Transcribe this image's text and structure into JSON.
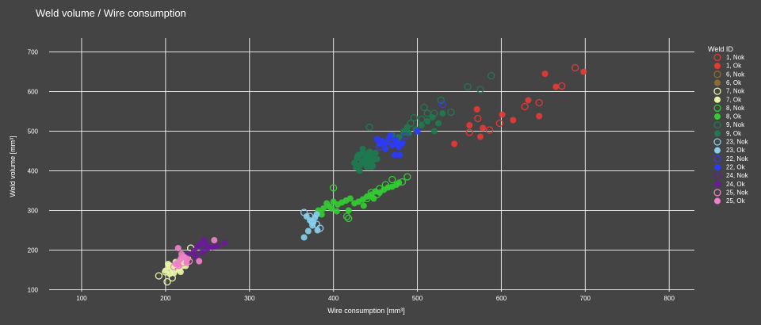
{
  "chart_data": {
    "type": "scatter",
    "title": "Weld volume / Wire consumption",
    "xlabel": "Wire consumption [mm³]",
    "ylabel": "Weld volume [mm³]",
    "xlim": [
      50,
      830
    ],
    "ylim": [
      95,
      735
    ],
    "xticks": [
      100,
      200,
      300,
      400,
      500,
      600,
      700,
      800
    ],
    "yticks": [
      100,
      200,
      300,
      400,
      500,
      600,
      700
    ],
    "grid": true,
    "legend_title": "Weld ID",
    "legend_position": "right",
    "series": [
      {
        "name": "1, Nok",
        "color": "#e53935",
        "marker": "open",
        "points": [
          [
            572,
            532
          ],
          [
            598,
            520
          ],
          [
            628,
            562
          ],
          [
            645,
            572
          ],
          [
            672,
            614
          ],
          [
            688,
            660
          ],
          [
            586,
            503
          ],
          [
            562,
            497
          ]
        ]
      },
      {
        "name": "1, Ok",
        "color": "#e53935",
        "marker": "filled",
        "points": [
          [
            652,
            645
          ],
          [
            665,
            612
          ],
          [
            698,
            650
          ],
          [
            632,
            578
          ],
          [
            614,
            528
          ],
          [
            601,
            542
          ],
          [
            578,
            508
          ],
          [
            575,
            486
          ],
          [
            571,
            555
          ],
          [
            544,
            468
          ],
          [
            562,
            515
          ],
          [
            645,
            538
          ]
        ]
      },
      {
        "name": "6, Nok",
        "color": "#8d6e2c",
        "marker": "open",
        "points": []
      },
      {
        "name": "6, Ok",
        "color": "#8d6e2c",
        "marker": "filled",
        "points": []
      },
      {
        "name": "7, Nok",
        "color": "#e6f5a8",
        "marker": "open",
        "points": [
          [
            192,
            135
          ],
          [
            202,
            120
          ],
          [
            205,
            160
          ],
          [
            210,
            150
          ],
          [
            218,
            170
          ],
          [
            226,
            180
          ],
          [
            230,
            205
          ],
          [
            200,
            145
          ],
          [
            208,
            130
          ],
          [
            214,
            158
          ]
        ]
      },
      {
        "name": "7, Ok",
        "color": "#e6f5a8",
        "marker": "filled",
        "points": [
          [
            200,
            148
          ],
          [
            204,
            160
          ],
          [
            207,
            155
          ],
          [
            210,
            142
          ],
          [
            213,
            165
          ],
          [
            216,
            150
          ],
          [
            220,
            160
          ],
          [
            205,
            140
          ],
          [
            212,
            170
          ],
          [
            218,
            145
          ],
          [
            222,
            180
          ],
          [
            224,
            160
          ],
          [
            208,
            152
          ],
          [
            203,
            165
          ],
          [
            219,
            175
          ]
        ]
      },
      {
        "name": "8, Nok",
        "color": "#33cc33",
        "marker": "open",
        "points": [
          [
            400,
            357
          ],
          [
            416,
            285
          ],
          [
            418,
            280
          ],
          [
            440,
            330
          ],
          [
            452,
            340
          ],
          [
            462,
            365
          ],
          [
            470,
            378
          ],
          [
            482,
            372
          ],
          [
            488,
            385
          ],
          [
            455,
            355
          ],
          [
            445,
            345
          ]
        ]
      },
      {
        "name": "8, Ok",
        "color": "#33cc33",
        "marker": "filled",
        "points": [
          [
            382,
            300
          ],
          [
            388,
            305
          ],
          [
            395,
            310
          ],
          [
            400,
            322
          ],
          [
            405,
            315
          ],
          [
            410,
            320
          ],
          [
            415,
            325
          ],
          [
            420,
            330
          ],
          [
            425,
            318
          ],
          [
            430,
            322
          ],
          [
            435,
            328
          ],
          [
            440,
            335
          ],
          [
            445,
            340
          ],
          [
            450,
            348
          ],
          [
            455,
            345
          ],
          [
            460,
            352
          ],
          [
            465,
            358
          ],
          [
            470,
            360
          ],
          [
            475,
            365
          ],
          [
            478,
            370
          ],
          [
            418,
            300
          ],
          [
            392,
            318
          ],
          [
            398,
            305
          ],
          [
            404,
            298
          ],
          [
            436,
            312
          ],
          [
            448,
            330
          ],
          [
            386,
            290
          ]
        ]
      },
      {
        "name": "9, Nok",
        "color": "#1e7a50",
        "marker": "open",
        "points": [
          [
            443,
            510
          ],
          [
            492,
            520
          ],
          [
            496,
            534
          ],
          [
            508,
            560
          ],
          [
            512,
            545
          ],
          [
            520,
            545
          ],
          [
            528,
            578
          ],
          [
            540,
            548
          ],
          [
            560,
            612
          ],
          [
            575,
            605
          ],
          [
            588,
            640
          ],
          [
            505,
            530
          ],
          [
            484,
            498
          ]
        ]
      },
      {
        "name": "9, Ok",
        "color": "#1e7a50",
        "marker": "filled",
        "points": [
          [
            425,
            420
          ],
          [
            428,
            432
          ],
          [
            430,
            440
          ],
          [
            432,
            415
          ],
          [
            434,
            425
          ],
          [
            436,
            445
          ],
          [
            438,
            430
          ],
          [
            440,
            410
          ],
          [
            442,
            438
          ],
          [
            444,
            420
          ],
          [
            446,
            435
          ],
          [
            448,
            428
          ],
          [
            450,
            445
          ],
          [
            452,
            430
          ],
          [
            427,
            408
          ],
          [
            431,
            400
          ],
          [
            435,
            455
          ],
          [
            439,
            418
          ],
          [
            443,
            448
          ],
          [
            447,
            412
          ],
          [
            429,
            438
          ],
          [
            437,
            425
          ],
          [
            441,
            432
          ],
          [
            433,
            442
          ],
          [
            445,
            410
          ],
          [
            478,
            485
          ],
          [
            484,
            500
          ],
          [
            490,
            495
          ],
          [
            498,
            505
          ],
          [
            505,
            515
          ],
          [
            512,
            525
          ],
          [
            520,
            500
          ],
          [
            518,
            535
          ],
          [
            525,
            520
          ],
          [
            530,
            545
          ],
          [
            470,
            490
          ],
          [
            476,
            470
          ],
          [
            488,
            510
          ]
        ]
      },
      {
        "name": "23, Nok",
        "color": "#87ceeb",
        "marker": "open",
        "points": [
          [
            365,
            295
          ],
          [
            372,
            285
          ],
          [
            375,
            270
          ],
          [
            380,
            265
          ],
          [
            384,
            255
          ]
        ]
      },
      {
        "name": "23, Ok",
        "color": "#87ceeb",
        "marker": "filled",
        "points": [
          [
            365,
            232
          ],
          [
            370,
            248
          ],
          [
            372,
            275
          ],
          [
            375,
            262
          ],
          [
            378,
            282
          ],
          [
            380,
            290
          ],
          [
            376,
            270
          ],
          [
            381,
            250
          ],
          [
            368,
            285
          ]
        ]
      },
      {
        "name": "22, Nok",
        "color": "#3a3ae0",
        "marker": "open",
        "points": [
          [
            455,
            460
          ],
          [
            470,
            470
          ],
          [
            486,
            488
          ],
          [
            530,
            568
          ]
        ]
      },
      {
        "name": "22, Ok",
        "color": "#2b3bff",
        "marker": "filled",
        "points": [
          [
            452,
            480
          ],
          [
            458,
            475
          ],
          [
            462,
            470
          ],
          [
            466,
            482
          ],
          [
            470,
            465
          ],
          [
            474,
            478
          ],
          [
            478,
            460
          ],
          [
            462,
            455
          ],
          [
            468,
            490
          ],
          [
            473,
            440
          ],
          [
            479,
            440
          ],
          [
            476,
            468
          ],
          [
            482,
            470
          ],
          [
            500,
            500
          ],
          [
            455,
            468
          ]
        ]
      },
      {
        "name": "24, Nok",
        "color": "#6a1b9a",
        "marker": "open",
        "points": []
      },
      {
        "name": "24, Ok",
        "color": "#6a1b9a",
        "marker": "filled",
        "points": [
          [
            234,
            198
          ],
          [
            238,
            210
          ],
          [
            242,
            215
          ],
          [
            246,
            225
          ],
          [
            250,
            205
          ],
          [
            256,
            208
          ],
          [
            262,
            210
          ],
          [
            270,
            218
          ],
          [
            244,
            195
          ],
          [
            248,
            215
          ],
          [
            236,
            185
          ],
          [
            228,
            190
          ]
        ]
      },
      {
        "name": "25, Nok",
        "color": "#ee82c8",
        "marker": "open",
        "points": [
          [
            210,
            158
          ],
          [
            220,
            168
          ],
          [
            228,
            172
          ]
        ]
      },
      {
        "name": "25, Ok",
        "color": "#ee82c8",
        "marker": "filled",
        "points": [
          [
            215,
            170
          ],
          [
            218,
            178
          ],
          [
            222,
            183
          ],
          [
            226,
            178
          ],
          [
            240,
            172
          ],
          [
            258,
            225
          ],
          [
            215,
            205
          ],
          [
            225,
            168
          ],
          [
            212,
            165
          ],
          [
            219,
            190
          ],
          [
            216,
            160
          ]
        ]
      }
    ]
  }
}
